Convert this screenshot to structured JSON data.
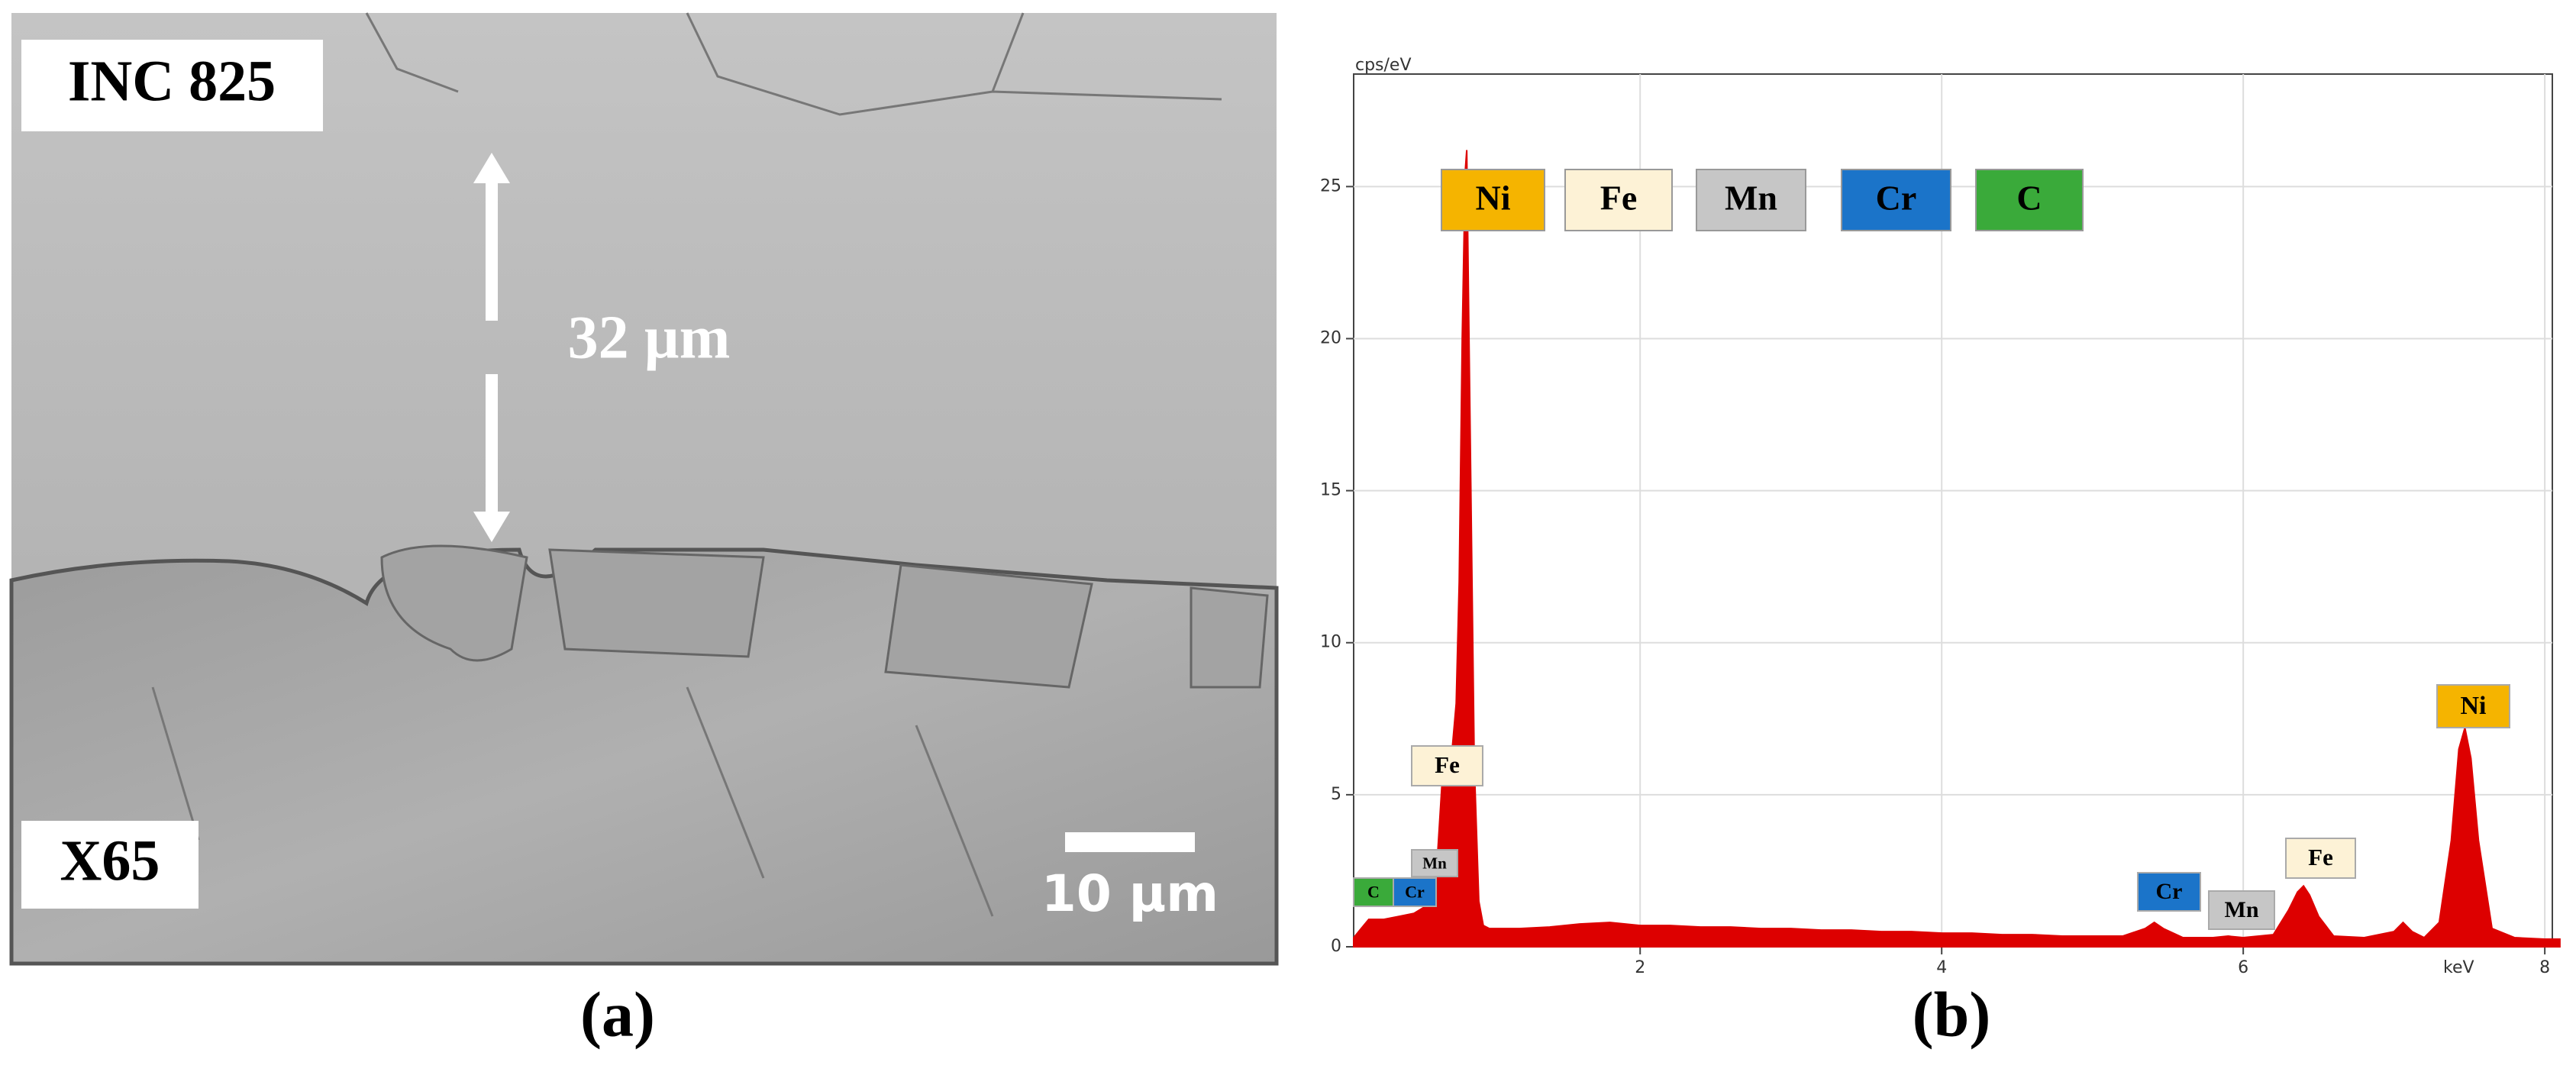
{
  "micrograph": {
    "top_label": "INC 825",
    "bottom_label": "X65",
    "thickness": "32 µm",
    "scale_bar": "10 µm",
    "caption": "(a)"
  },
  "chart_data": {
    "type": "area",
    "caption": "(b)",
    "y_unit": "cps/eV",
    "x_label": "keV",
    "color": "#dd0000",
    "x": [
      0.1,
      0.2,
      0.3,
      0.4,
      0.5,
      0.6,
      0.65,
      0.7,
      0.75,
      0.78,
      0.8,
      0.82,
      0.84,
      0.85,
      0.86,
      0.88,
      0.9,
      0.93,
      0.96,
      1.0,
      1.2,
      1.4,
      1.6,
      1.8,
      2.0,
      2.2,
      2.4,
      2.6,
      2.8,
      3.0,
      3.2,
      3.4,
      3.6,
      3.8,
      4.0,
      4.2,
      4.4,
      4.6,
      4.8,
      5.0,
      5.2,
      5.35,
      5.41,
      5.47,
      5.6,
      5.8,
      5.9,
      6.0,
      6.2,
      6.3,
      6.36,
      6.4,
      6.44,
      6.5,
      6.6,
      6.8,
      7.0,
      7.06,
      7.12,
      7.2,
      7.3,
      7.38,
      7.43,
      7.47,
      7.51,
      7.56,
      7.65,
      7.8,
      8.0,
      8.1
    ],
    "values": [
      0.3,
      0.9,
      0.9,
      1.0,
      1.1,
      1.4,
      2.5,
      6.5,
      6.3,
      8,
      12,
      20,
      25.5,
      26.2,
      22,
      14,
      6,
      1.5,
      0.7,
      0.6,
      0.6,
      0.65,
      0.75,
      0.8,
      0.7,
      0.7,
      0.65,
      0.65,
      0.6,
      0.6,
      0.55,
      0.55,
      0.5,
      0.5,
      0.45,
      0.45,
      0.4,
      0.4,
      0.35,
      0.35,
      0.35,
      0.6,
      0.8,
      0.6,
      0.3,
      0.3,
      0.35,
      0.3,
      0.4,
      1.2,
      1.8,
      2.0,
      1.7,
      1.0,
      0.35,
      0.3,
      0.5,
      0.8,
      0.5,
      0.3,
      0.8,
      3.5,
      6.5,
      7.2,
      6.2,
      3.5,
      0.6,
      0.3,
      0.25,
      0.25
    ],
    "xlim": [
      0.1,
      8.05
    ],
    "ylim": [
      0,
      28.7
    ],
    "xticks": [
      2,
      4,
      6,
      8
    ],
    "yticks": [
      0,
      5,
      10,
      15,
      20,
      25
    ],
    "grid": true,
    "legend": [
      {
        "name": "Ni",
        "color": "#f5b400"
      },
      {
        "name": "Fe",
        "color": "#fdf2d6"
      },
      {
        "name": "Mn",
        "color": "#c6c6c6"
      },
      {
        "name": "Cr",
        "color": "#1b74c9"
      },
      {
        "name": "C",
        "color": "#3aaa3a"
      }
    ],
    "peak_labels": [
      {
        "name": "Fe",
        "color": "#fdf2d6"
      },
      {
        "name": "Mn",
        "color": "#c6c6c6"
      },
      {
        "name": "C",
        "color": "#3aaa3a"
      },
      {
        "name": "Cr",
        "color": "#1b74c9"
      },
      {
        "name": "Cr",
        "color": "#1b74c9"
      },
      {
        "name": "Mn",
        "color": "#c6c6c6"
      },
      {
        "name": "Fe",
        "color": "#fdf2d6"
      },
      {
        "name": "Ni",
        "color": "#f5b400"
      }
    ]
  }
}
